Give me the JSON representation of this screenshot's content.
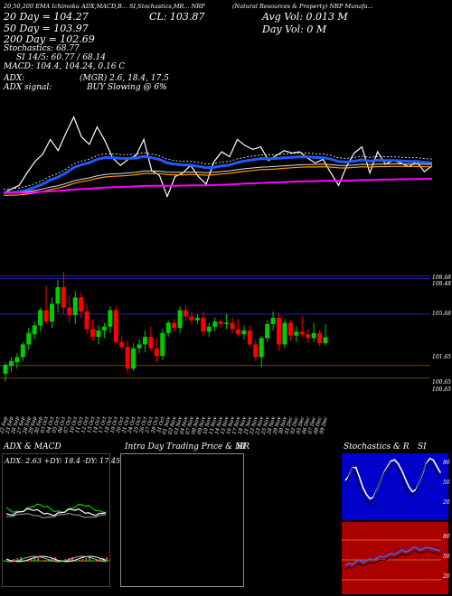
{
  "header": {
    "top_strip": "20,50,200 EMA Ichimoku ADX,MACD,B... SI,Stochastics,MR... NRP",
    "right_strip": "(Natural Resources & Property) NRP Munafa... ",
    "ema20": "20 Day = 104.27",
    "ema50": "50 Day = 103.97",
    "ema200": "200 Day = 102.69",
    "close": "CL: 103.87",
    "avg_vol": "Avg Vol: 0.013 M",
    "day_vol": "Day Vol: 0 M",
    "stochastics": "Stochastics: 68.77",
    "si": "SI 14/5: 60.77 / 68.14",
    "macd": "MACD: 104.4, 104.24, 0.16 C",
    "adx": "ADX:",
    "adx_signal": "ADX signal:",
    "mgr": "(MGR) 2.6, 18.4, 17.5",
    "buy": "BUY Slowing @ 6%"
  },
  "price_axis": {
    "labels": [
      "108.68",
      "108.48",
      "105.68",
      "101.65",
      "100.65",
      "100.65"
    ]
  },
  "dates": [
    "22 Sep",
    "23 Sep",
    "26 Sep",
    "27 Sep",
    "28 Sep",
    "29 Sep",
    "30 Sep",
    "03 Oct",
    "04 Oct",
    "05 Oct",
    "06 Oct",
    "07 Oct",
    "10 Oct",
    "11 Oct",
    "12 Oct",
    "13 Oct",
    "14 Oct",
    "17 Oct",
    "18 Oct",
    "19 Oct",
    "20 Oct",
    "21 Oct",
    "24 Oct",
    "25 Oct",
    "26 Oct",
    "27 Oct",
    "28 Oct",
    "31 Oct",
    "01 Nov",
    "02 Nov",
    "03 Nov",
    "04 Nov",
    "07 Nov",
    "08 Nov",
    "09 Nov",
    "10 Nov",
    "11 Nov",
    "14 Nov",
    "15 Nov",
    "16 Nov",
    "17 Nov",
    "18 Nov",
    "21 Nov",
    "22 Nov",
    "23 Nov",
    "25 Nov",
    "28 Nov",
    "29 Nov",
    "30 Nov",
    "01 Dec",
    "02 Dec",
    "05 Dec",
    "06 Dec",
    "07 Dec",
    "08 Dec",
    "09 Dec"
  ],
  "panels": {
    "adx_title": "ADX & MACD",
    "adx_readout": "ADX: 2.63 +DY: 18.4 -DY: 17.45",
    "intraday_title": "Intra Day Trading Price & MR",
    "intraday_si": "SI",
    "stoch_title": "Stochastics & R",
    "stoch_si": "SI",
    "stoch_labels": [
      "80",
      "50",
      "20"
    ],
    "si_labels": [
      "80",
      "50",
      "20"
    ]
  },
  "chart_data": {
    "type": "candlestick",
    "title": "NRP",
    "ylim": [
      99.5,
      110.5
    ],
    "candles": [
      {
        "o": 101.0,
        "h": 101.9,
        "l": 100.4,
        "c": 101.7
      },
      {
        "o": 101.6,
        "h": 102.3,
        "l": 101.1,
        "c": 102.0
      },
      {
        "o": 101.9,
        "h": 102.6,
        "l": 101.4,
        "c": 102.3
      },
      {
        "o": 102.3,
        "h": 103.5,
        "l": 102.0,
        "c": 103.3
      },
      {
        "o": 103.3,
        "h": 104.6,
        "l": 102.9,
        "c": 104.2
      },
      {
        "o": 104.1,
        "h": 105.1,
        "l": 103.7,
        "c": 104.8
      },
      {
        "o": 104.8,
        "h": 106.2,
        "l": 104.3,
        "c": 106.0
      },
      {
        "o": 106.0,
        "h": 107.9,
        "l": 104.9,
        "c": 105.1
      },
      {
        "o": 105.1,
        "h": 107.0,
        "l": 104.6,
        "c": 106.5
      },
      {
        "o": 106.5,
        "h": 108.4,
        "l": 105.8,
        "c": 107.8
      },
      {
        "o": 107.8,
        "h": 109.0,
        "l": 105.7,
        "c": 106.2
      },
      {
        "o": 106.2,
        "h": 107.2,
        "l": 105.0,
        "c": 105.6
      },
      {
        "o": 105.6,
        "h": 107.5,
        "l": 104.9,
        "c": 107.0
      },
      {
        "o": 107.0,
        "h": 107.4,
        "l": 105.4,
        "c": 105.9
      },
      {
        "o": 105.9,
        "h": 106.5,
        "l": 104.1,
        "c": 104.5
      },
      {
        "o": 104.5,
        "h": 105.3,
        "l": 103.6,
        "c": 103.9
      },
      {
        "o": 103.9,
        "h": 104.8,
        "l": 103.3,
        "c": 104.4
      },
      {
        "o": 104.4,
        "h": 105.0,
        "l": 103.8,
        "c": 104.7
      },
      {
        "o": 104.7,
        "h": 106.3,
        "l": 104.2,
        "c": 106.0
      },
      {
        "o": 106.0,
        "h": 106.3,
        "l": 103.3,
        "c": 103.5
      },
      {
        "o": 103.5,
        "h": 103.9,
        "l": 102.8,
        "c": 103.1
      },
      {
        "o": 103.1,
        "h": 103.6,
        "l": 101.0,
        "c": 101.4
      },
      {
        "o": 101.4,
        "h": 103.4,
        "l": 101.2,
        "c": 103.0
      },
      {
        "o": 103.0,
        "h": 103.7,
        "l": 102.6,
        "c": 103.3
      },
      {
        "o": 103.3,
        "h": 104.4,
        "l": 102.7,
        "c": 103.9
      },
      {
        "o": 103.9,
        "h": 104.7,
        "l": 102.8,
        "c": 103.0
      },
      {
        "o": 103.0,
        "h": 103.8,
        "l": 101.9,
        "c": 102.4
      },
      {
        "o": 102.4,
        "h": 104.5,
        "l": 102.1,
        "c": 104.2
      },
      {
        "o": 104.2,
        "h": 105.2,
        "l": 103.9,
        "c": 105.0
      },
      {
        "o": 105.0,
        "h": 105.3,
        "l": 104.3,
        "c": 104.6
      },
      {
        "o": 104.6,
        "h": 106.3,
        "l": 104.2,
        "c": 106.0
      },
      {
        "o": 106.0,
        "h": 106.4,
        "l": 105.1,
        "c": 105.5
      },
      {
        "o": 105.5,
        "h": 105.9,
        "l": 104.9,
        "c": 105.2
      },
      {
        "o": 105.2,
        "h": 105.7,
        "l": 104.9,
        "c": 105.4
      },
      {
        "o": 105.4,
        "h": 105.9,
        "l": 104.0,
        "c": 104.3
      },
      {
        "o": 104.3,
        "h": 105.0,
        "l": 103.9,
        "c": 104.7
      },
      {
        "o": 104.7,
        "h": 105.4,
        "l": 104.3,
        "c": 105.1
      },
      {
        "o": 105.1,
        "h": 105.3,
        "l": 104.6,
        "c": 104.9
      },
      {
        "o": 104.9,
        "h": 105.7,
        "l": 104.5,
        "c": 105.0
      },
      {
        "o": 105.0,
        "h": 105.4,
        "l": 104.2,
        "c": 104.5
      },
      {
        "o": 104.5,
        "h": 105.3,
        "l": 103.9,
        "c": 104.1
      },
      {
        "o": 104.1,
        "h": 104.8,
        "l": 103.7,
        "c": 104.4
      },
      {
        "o": 104.4,
        "h": 104.8,
        "l": 103.1,
        "c": 103.3
      },
      {
        "o": 103.3,
        "h": 103.6,
        "l": 102.0,
        "c": 102.3
      },
      {
        "o": 102.3,
        "h": 104.0,
        "l": 101.5,
        "c": 103.8
      },
      {
        "o": 103.8,
        "h": 105.2,
        "l": 103.5,
        "c": 104.9
      },
      {
        "o": 104.9,
        "h": 105.9,
        "l": 104.4,
        "c": 105.4
      },
      {
        "o": 105.4,
        "h": 105.8,
        "l": 102.8,
        "c": 103.3
      },
      {
        "o": 103.3,
        "h": 105.3,
        "l": 103.0,
        "c": 105.0
      },
      {
        "o": 105.0,
        "h": 105.2,
        "l": 103.6,
        "c": 104.0
      },
      {
        "o": 104.0,
        "h": 104.7,
        "l": 103.5,
        "c": 104.3
      },
      {
        "o": 104.3,
        "h": 105.5,
        "l": 103.9,
        "c": 104.1
      },
      {
        "o": 104.1,
        "h": 104.5,
        "l": 103.4,
        "c": 103.8
      },
      {
        "o": 103.8,
        "h": 105.0,
        "l": 103.5,
        "c": 104.2
      },
      {
        "o": 104.2,
        "h": 104.4,
        "l": 103.2,
        "c": 103.4
      },
      {
        "o": 103.4,
        "h": 104.9,
        "l": 103.2,
        "c": 103.87
      }
    ],
    "levels": [
      108.68,
      108.48,
      105.68,
      101.65,
      100.65
    ],
    "colors": {
      "up": "#00cc00",
      "down": "#ff0000",
      "ema20": "#1f5bff",
      "ema50": "#ffffff",
      "ema200": "#ff00ff",
      "level": "#2222aa",
      "stoch_bg": "#0000cc",
      "si_bg": "#aa0000"
    }
  }
}
